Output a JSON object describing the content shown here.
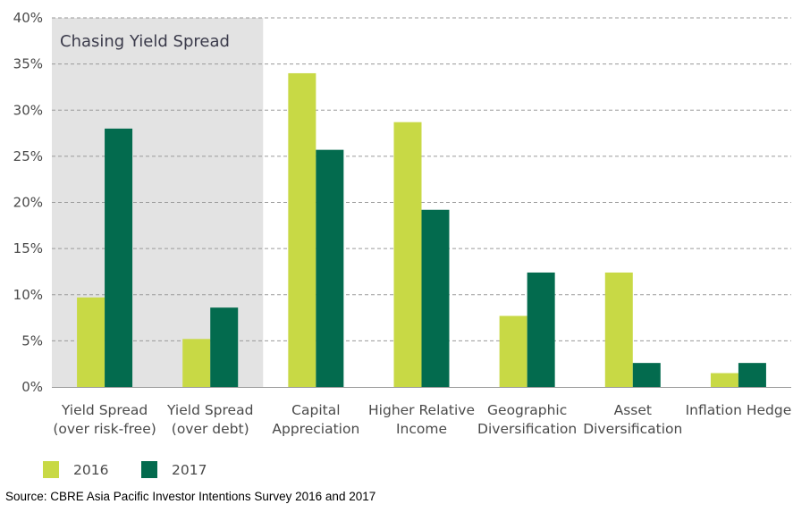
{
  "chart_data": {
    "type": "bar",
    "categories": [
      [
        "Yield Spread",
        "(over risk-free)"
      ],
      [
        "Yield Spread",
        "(over debt)"
      ],
      [
        "Capital",
        "Appreciation"
      ],
      [
        "Higher Relative",
        "Income"
      ],
      [
        "Geographic",
        "Diversification"
      ],
      [
        "Asset",
        "Diversification"
      ],
      [
        "Inflation Hedge"
      ]
    ],
    "series": [
      {
        "name": "2016",
        "color": "#c8d945",
        "values": [
          9.7,
          5.2,
          34.0,
          28.7,
          7.7,
          12.4,
          1.5
        ]
      },
      {
        "name": "2017",
        "color": "#036b4e",
        "values": [
          28.0,
          8.6,
          25.7,
          19.2,
          12.4,
          2.6,
          2.6
        ]
      }
    ],
    "ylim": [
      0,
      40
    ],
    "ytick_labels": [
      "0%",
      "5%",
      "10%",
      "15%",
      "20%",
      "25%",
      "30%",
      "35%",
      "40%"
    ],
    "grid": "horizontal dashed",
    "legend_position": "bottom-left",
    "highlight": {
      "label": "Chasing Yield Spread",
      "categories_covered": 2,
      "color": "#e3e3e3"
    }
  },
  "source_text": "Source: CBRE Asia Pacific Investor Intentions Survey 2016 and 2017"
}
